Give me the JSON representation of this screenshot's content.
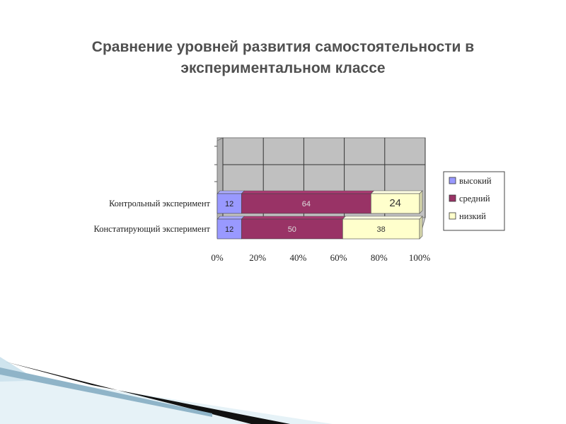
{
  "slide": {
    "title": "Сравнение уровней развития самостоятельности в экспериментальном классе"
  },
  "chart_data": {
    "type": "bar",
    "orientation": "horizontal",
    "stacked": "percent",
    "style": "3d",
    "categories": [
      "Контрольный эксперимент",
      "Констатирующий эксперимент"
    ],
    "series": [
      {
        "name": "высокий",
        "values": [
          12,
          12
        ],
        "color": "#9999ff"
      },
      {
        "name": "средний",
        "values": [
          64,
          50
        ],
        "color": "#993366"
      },
      {
        "name": "низкий",
        "values": [
          24,
          38
        ],
        "color": "#ffffcc"
      }
    ],
    "xlim": [
      0,
      100
    ],
    "x_ticks": [
      "0%",
      "20%",
      "40%",
      "60%",
      "80%",
      "100%"
    ],
    "grid": true,
    "legend_position": "right",
    "wall_color": "#c0c0c0"
  }
}
